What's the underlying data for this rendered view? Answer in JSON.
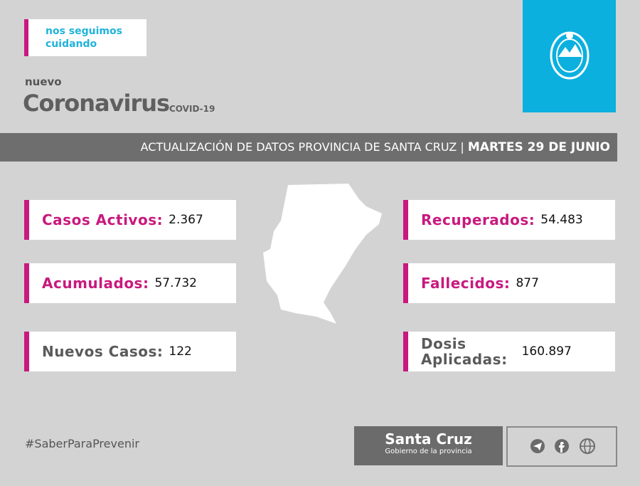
{
  "tag_lines": [
    "nos seguimos",
    "cuidando"
  ],
  "header": {
    "kicker": "nuevo",
    "title": "Coronavirus",
    "subtitle": "COVID-19"
  },
  "banner": {
    "text": "ACTUALIZACIÓN DE DATOS PROVINCIA DE SANTA CRUZ |",
    "date": "MARTES 29 DE JUNIO"
  },
  "stats": [
    {
      "label": [
        "Casos Activos:"
      ],
      "value": "2.367"
    },
    {
      "label": [
        "Acumulados:"
      ],
      "value": "57.732"
    },
    {
      "label": [
        "Nuevos Casos:"
      ],
      "value": "122"
    },
    {
      "label": [
        "Recuperados:"
      ],
      "value": "54.483"
    },
    {
      "label": [
        "Fallecidos:"
      ],
      "value": "877"
    },
    {
      "label": [
        "Dosis",
        "Aplicadas:"
      ],
      "value": "160.897"
    }
  ],
  "footer": {
    "hashtag": "#SaberParaPrevenir",
    "brand": "Santa Cruz",
    "brand_sub": "Gobierno de la provincia"
  }
}
